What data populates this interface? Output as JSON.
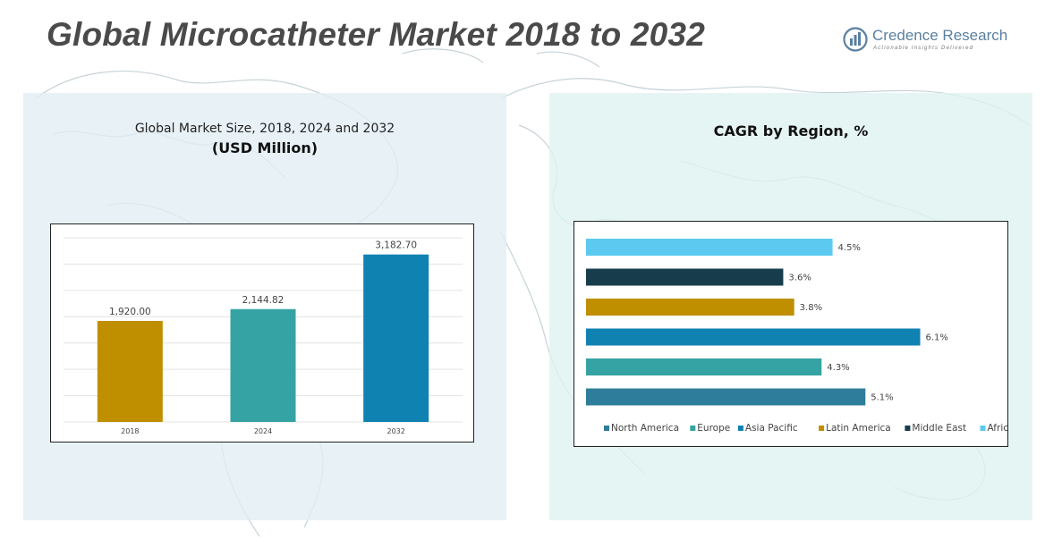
{
  "page": {
    "title": "Global Microcatheter Market 2018 to 2032",
    "logo_name": "Credence Research",
    "logo_tagline": "Actionable Insights Delivered"
  },
  "left_panel": {
    "title": "Global Market Size, 2018, 2024 and 2032",
    "subtitle": "(USD Million)"
  },
  "right_panel": {
    "title": "CAGR by Region, %"
  },
  "colors": {
    "bar_2018": "#c08f00",
    "bar_2024": "#35a3a3",
    "bar_2032": "#0f82b2",
    "north_america": "#2e7d9a",
    "europe": "#35a3a3",
    "asia_pacific": "#0f82b2",
    "latin_america": "#c08f00",
    "middle_east": "#173d4d",
    "africa": "#5ccaf0"
  },
  "chart_data": [
    {
      "type": "bar",
      "categories": [
        "2018",
        "2024",
        "2032"
      ],
      "values": [
        1920.0,
        2144.82,
        3182.7
      ],
      "value_labels": [
        "1,920.00",
        "2,144.82",
        "3,182.70"
      ],
      "title": "Global Market Size, 2018, 2024 and 2032",
      "subtitle": "(USD Million)",
      "xlabel": "",
      "ylabel": "",
      "ylim": [
        0,
        3500
      ],
      "grid": true
    },
    {
      "type": "bar",
      "orientation": "horizontal",
      "title": "CAGR by Region, %",
      "series": [
        {
          "name": "North America",
          "value": 5.1,
          "label": "5.1%",
          "color_key": "north_america"
        },
        {
          "name": "Europe",
          "value": 4.3,
          "label": "4.3%",
          "color_key": "europe"
        },
        {
          "name": "Asia Pacific",
          "value": 6.1,
          "label": "6.1%",
          "color_key": "asia_pacific"
        },
        {
          "name": "Latin America",
          "value": 3.8,
          "label": "3.8%",
          "color_key": "latin_america"
        },
        {
          "name": "Middle East",
          "value": 3.6,
          "label": "3.6%",
          "color_key": "middle_east"
        },
        {
          "name": "Africa",
          "value": 4.5,
          "label": "4.5%",
          "color_key": "africa"
        }
      ],
      "xlim": [
        0,
        6.5
      ],
      "grid": false,
      "legend": "bottom"
    }
  ]
}
